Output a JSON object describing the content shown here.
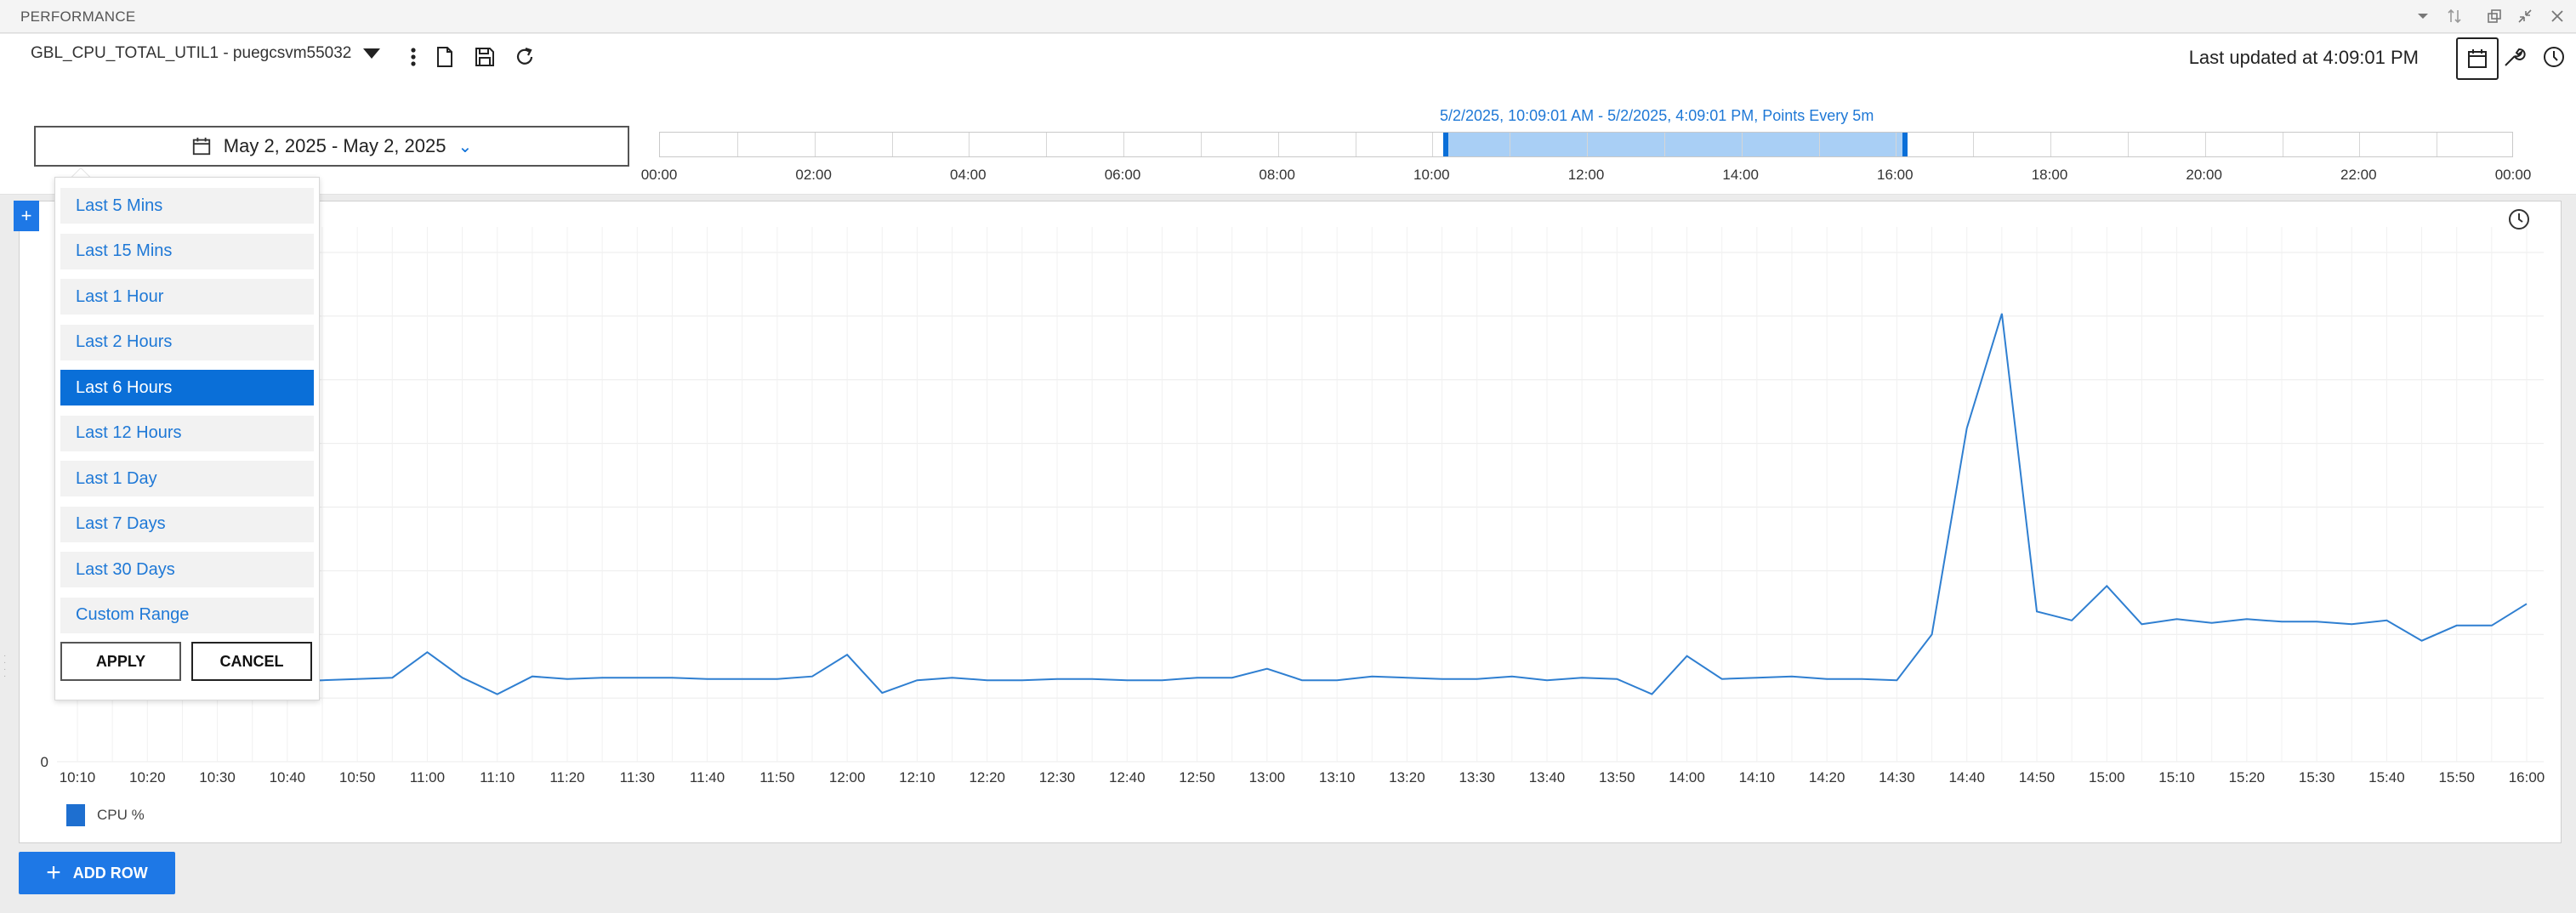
{
  "panel": {
    "title": "PERFORMANCE"
  },
  "toolbar": {
    "metric": "GBL_CPU_TOTAL_UTIL1 - puegcsvm55032",
    "last_updated": "Last updated at 4:09:01 PM"
  },
  "date_picker": {
    "label": "May 2, 2025 - May 2, 2025"
  },
  "timeline": {
    "info": "5/2/2025, 10:09:01 AM - 5/2/2025, 4:09:01 PM, Points Every 5m",
    "labels": [
      "00:00",
      "02:00",
      "04:00",
      "06:00",
      "08:00",
      "10:00",
      "12:00",
      "14:00",
      "16:00",
      "18:00",
      "20:00",
      "22:00",
      "00:00"
    ]
  },
  "range_menu": {
    "items": [
      "Last 5 Mins",
      "Last 15 Mins",
      "Last 1 Hour",
      "Last 2 Hours",
      "Last 6 Hours",
      "Last 12 Hours",
      "Last 1 Day",
      "Last 7 Days",
      "Last 30 Days",
      "Custom Range"
    ],
    "active_index": 4,
    "apply": "APPLY",
    "cancel": "CANCEL"
  },
  "chart_data": {
    "type": "line",
    "x": [
      "10:10",
      "10:15",
      "10:20",
      "10:25",
      "10:30",
      "10:35",
      "10:40",
      "10:45",
      "10:50",
      "10:55",
      "11:00",
      "11:05",
      "11:10",
      "11:15",
      "11:20",
      "11:25",
      "11:30",
      "11:35",
      "11:40",
      "11:45",
      "11:50",
      "11:55",
      "12:00",
      "12:05",
      "12:10",
      "12:15",
      "12:20",
      "12:25",
      "12:30",
      "12:35",
      "12:40",
      "12:45",
      "12:50",
      "12:55",
      "13:00",
      "13:05",
      "13:10",
      "13:15",
      "13:20",
      "13:25",
      "13:30",
      "13:35",
      "13:40",
      "13:45",
      "13:50",
      "13:55",
      "14:00",
      "14:05",
      "14:10",
      "14:15",
      "14:20",
      "14:25",
      "14:30",
      "14:35",
      "14:40",
      "14:45",
      "14:50",
      "14:55",
      "15:00",
      "15:05",
      "15:10",
      "15:15",
      "15:20",
      "15:25",
      "15:30",
      "15:35",
      "15:40",
      "15:45",
      "15:50",
      "15:55",
      "16:00"
    ],
    "x_tick_labels": [
      "10:10",
      "10:20",
      "10:30",
      "10:40",
      "10:50",
      "11:00",
      "11:10",
      "11:20",
      "11:30",
      "11:40",
      "11:50",
      "12:00",
      "12:10",
      "12:20",
      "12:30",
      "12:40",
      "12:50",
      "13:00",
      "13:10",
      "13:20",
      "13:30",
      "13:40",
      "13:50",
      "14:00",
      "14:10",
      "14:20",
      "14:30",
      "14:40",
      "14:50",
      "15:00",
      "15:10",
      "15:20",
      "15:30",
      "15:40",
      "15:50",
      "16:00"
    ],
    "series": [
      {
        "name": "CPU %",
        "color": "#2f7fd1",
        "values": [
          6.3,
          6.2,
          6.4,
          6.3,
          6.2,
          6.3,
          6.3,
          6.4,
          6.5,
          6.6,
          8.6,
          6.6,
          5.3,
          6.7,
          6.5,
          6.6,
          6.6,
          6.6,
          6.5,
          6.5,
          6.5,
          6.7,
          8.4,
          5.4,
          6.4,
          6.6,
          6.4,
          6.4,
          6.5,
          6.5,
          6.4,
          6.4,
          6.6,
          6.6,
          7.3,
          6.4,
          6.4,
          6.7,
          6.6,
          6.5,
          6.5,
          6.7,
          6.4,
          6.6,
          6.5,
          5.3,
          8.3,
          6.5,
          6.6,
          6.7,
          6.5,
          6.5,
          6.4,
          10.0,
          26.2,
          35.2,
          11.8,
          11.1,
          13.8,
          10.8,
          11.2,
          10.9,
          11.2,
          11.0,
          11.0,
          10.8,
          11.1,
          9.5,
          10.7,
          10.7,
          12.4
        ]
      }
    ],
    "y_tick_labels": [
      "0"
    ],
    "ylim": [
      0,
      40
    ],
    "grid": true,
    "legend": "bottom-left"
  }
}
